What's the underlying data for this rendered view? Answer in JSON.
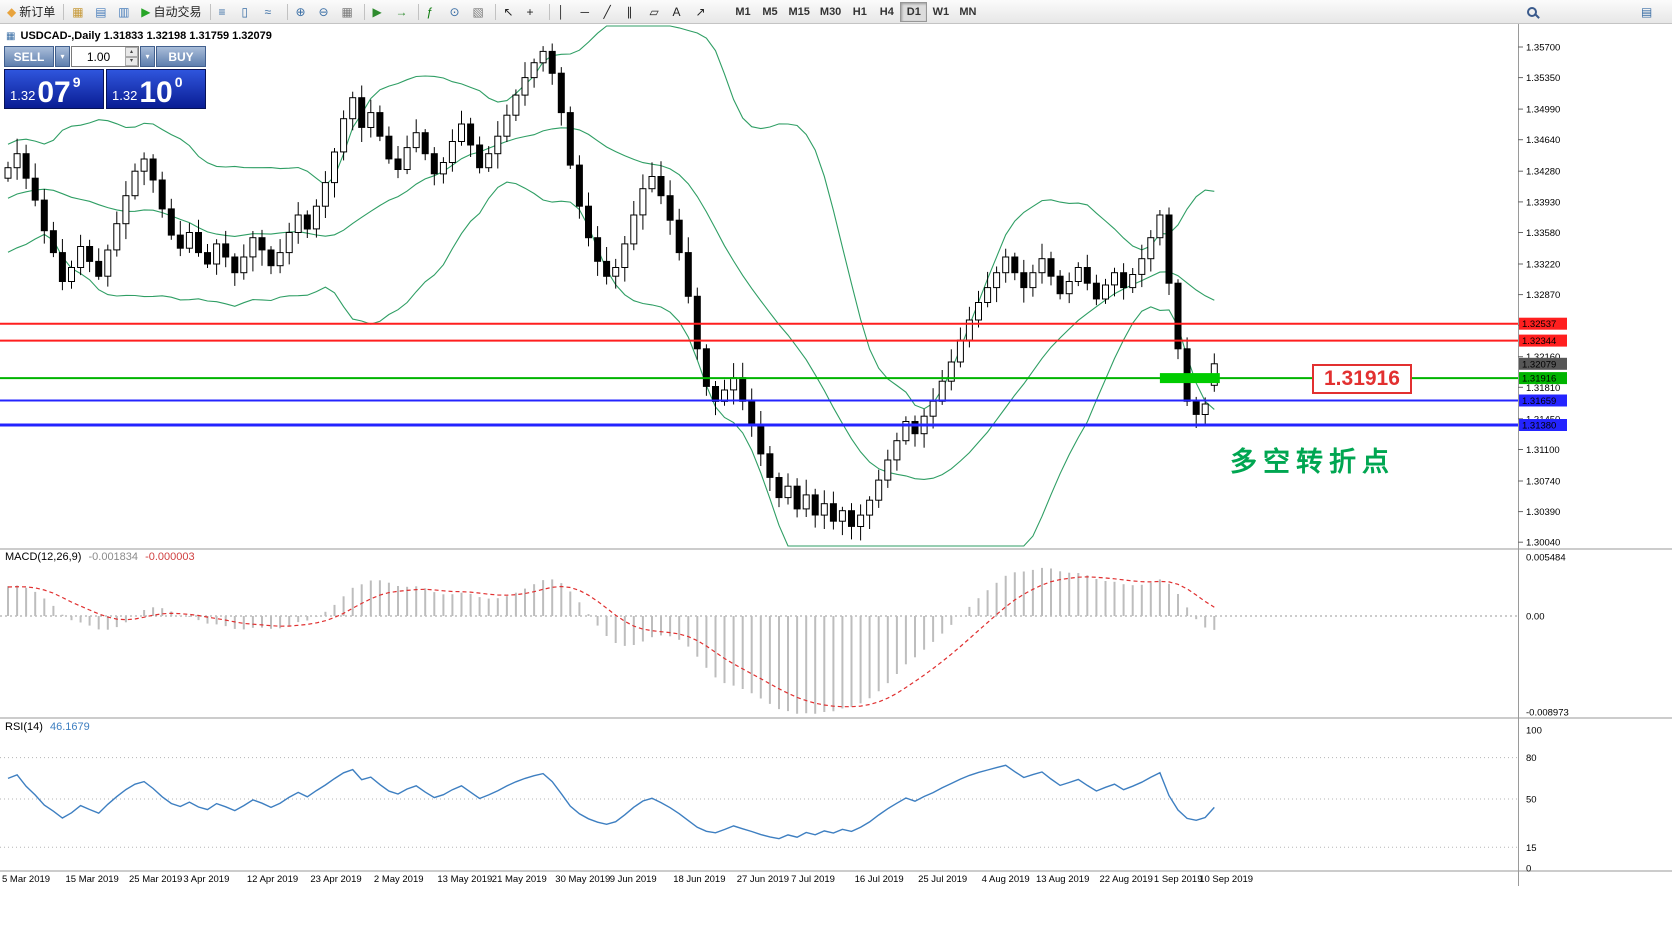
{
  "toolbar": {
    "groups": [
      {
        "items": [
          {
            "name": "new-order-button",
            "glyph": "◆",
            "color": "#e8a33d",
            "label": "新订单"
          }
        ]
      },
      {
        "items": [
          {
            "name": "chart-windows-icon",
            "glyph": "▦",
            "color": "#c79a3a"
          },
          {
            "name": "profiles-icon",
            "glyph": "▤",
            "color": "#4a7ebb"
          },
          {
            "name": "terminal-icon",
            "glyph": "▥",
            "color": "#4a7ebb"
          },
          {
            "name": "autotrading-button",
            "glyph": "▶",
            "color": "#27a527",
            "label": "自动交易"
          }
        ]
      },
      {
        "items": [
          {
            "name": "bar-chart-type-icon",
            "glyph": "≡",
            "color": "#3a6ea5"
          },
          {
            "name": "candlestick-chart-type-icon",
            "glyph": "▯",
            "color": "#3a6ea5"
          },
          {
            "name": "line-chart-type-icon",
            "glyph": "≈",
            "color": "#3a6ea5"
          }
        ]
      },
      {
        "items": [
          {
            "name": "zoom-in-icon",
            "glyph": "⊕",
            "color": "#3a6ea5"
          },
          {
            "name": "zoom-out-icon",
            "glyph": "⊖",
            "color": "#3a6ea5"
          },
          {
            "name": "tile-windows-icon",
            "glyph": "▦",
            "color": "#7a7a7a"
          }
        ]
      },
      {
        "items": [
          {
            "name": "auto-scroll-icon",
            "glyph": "▶",
            "color": "#2e8b2e"
          },
          {
            "name": "chart-shift-icon",
            "glyph": "→",
            "color": "#2e8b2e"
          }
        ]
      },
      {
        "items": [
          {
            "name": "indicators-icon",
            "glyph": "ƒ",
            "color": "#0a7a0a"
          },
          {
            "name": "periods-icon",
            "glyph": "⊙",
            "color": "#3a6ea5"
          },
          {
            "name": "templates-icon",
            "glyph": "▧",
            "color": "#7a7a7a"
          }
        ]
      },
      {
        "items": [
          {
            "name": "cursor-icon",
            "glyph": "↖",
            "color": "#222222"
          },
          {
            "name": "crosshair-icon",
            "glyph": "+",
            "color": "#222222"
          }
        ]
      },
      {
        "items": [
          {
            "name": "vertical-line-icon",
            "glyph": "│",
            "color": "#222222"
          },
          {
            "name": "horizontal-line-icon",
            "glyph": "─",
            "color": "#222222"
          },
          {
            "name": "trendline-icon",
            "glyph": "╱",
            "color": "#222222"
          },
          {
            "name": "equidistant-channel-icon",
            "glyph": "∥",
            "color": "#222222"
          },
          {
            "name": "shapes-icon",
            "glyph": "▱",
            "color": "#222222"
          },
          {
            "name": "text-label-icon",
            "glyph": "A",
            "color": "#222222"
          },
          {
            "name": "arrows-tool-icon",
            "glyph": "↗",
            "color": "#222222"
          }
        ]
      }
    ],
    "timeframes": [
      {
        "label": "M1",
        "active": false
      },
      {
        "label": "M5",
        "active": false
      },
      {
        "label": "M15",
        "active": false
      },
      {
        "label": "M30",
        "active": false
      },
      {
        "label": "H1",
        "active": false
      },
      {
        "label": "H4",
        "active": false
      },
      {
        "label": "D1",
        "active": true
      },
      {
        "label": "W1",
        "active": false
      },
      {
        "label": "MN",
        "active": false
      }
    ],
    "right_items": [
      {
        "name": "search-button",
        "css": "magnifier"
      },
      {
        "name": "popup-prices-button",
        "glyph": "▤",
        "color": "#3a6ea5"
      }
    ]
  },
  "chart": {
    "icon_glyph": "▦",
    "symbol_title": "USDCAD-,Daily",
    "ohlc_line": "1.31833 1.32198 1.31759 1.32079"
  },
  "trade_panel": {
    "sell_button_label": "SELL",
    "buy_button_label": "BUY",
    "volume_value": "1.00",
    "dropdown_glyph": "▾",
    "spinner_up_glyph": "▴",
    "spinner_down_glyph": "▾",
    "sell_price": {
      "prefix": "1.32",
      "big": "07",
      "sup": "9"
    },
    "buy_price": {
      "prefix": "1.32",
      "big": "10",
      "sup": "0"
    }
  },
  "annotations": {
    "pivot_note": "多空转折点",
    "pivot_price_label": "1.31916"
  },
  "chart_data": {
    "type": "candlestick",
    "symbol": "USDCAD",
    "timeframe": "Daily",
    "grid": false,
    "last_candle": {
      "open": 1.31833,
      "high": 1.32198,
      "low": 1.31759,
      "close": 1.32079
    },
    "current_price": {
      "label": "1.32079",
      "price": 1.32079
    },
    "price_axis_ticks": [
      "1.35700",
      "1.35350",
      "1.34990",
      "1.34640",
      "1.34280",
      "1.33930",
      "1.33580",
      "1.33220",
      "1.32870",
      "1.32520",
      "1.32160",
      "1.31810",
      "1.31450",
      "1.31100",
      "1.30740",
      "1.30390",
      "1.30040"
    ],
    "hlines": [
      {
        "label": "1.32537",
        "price": 1.32537,
        "color": "#ff1f1f",
        "width": 2
      },
      {
        "label": "1.32344",
        "price": 1.32344,
        "color": "#ff1f1f",
        "width": 2
      },
      {
        "label": "1.31916",
        "price": 1.31916,
        "color": "#00b400",
        "width": 2
      },
      {
        "label": "1.31659",
        "price": 1.31659,
        "color": "#2424ff",
        "width": 2
      },
      {
        "label": "1.31380",
        "price": 1.3138,
        "color": "#2424ff",
        "width": 3
      }
    ],
    "highlight_band": {
      "price": 1.31916,
      "from_index": 127,
      "to_index": 133.6,
      "color": "#00cc00",
      "thickness": 10
    },
    "bollinger": {
      "period": 20,
      "deviation": 2
    },
    "macd": {
      "label": "MACD(12,26,9)",
      "value_main": "-0.001834",
      "value_signal": "-0.000003",
      "params": [
        12,
        26,
        9
      ],
      "axis": [
        "0.005484",
        "0.00",
        "-0.008973"
      ]
    },
    "rsi": {
      "label": "RSI(14)",
      "value": "46.1679",
      "period": 14,
      "axis": [
        "100",
        "80",
        "50",
        "15",
        "0"
      ],
      "levels": [
        80,
        50,
        15
      ]
    },
    "dates": [
      {
        "label": "5 Mar 2019",
        "index": 0
      },
      {
        "label": "15 Mar 2019",
        "index": 7
      },
      {
        "label": "25 Mar 2019",
        "index": 14
      },
      {
        "label": "3 Apr 2019",
        "index": 20
      },
      {
        "label": "12 Apr 2019",
        "index": 27
      },
      {
        "label": "23 Apr 2019",
        "index": 34
      },
      {
        "label": "2 May 2019",
        "index": 41
      },
      {
        "label": "13 May 2019",
        "index": 48
      },
      {
        "label": "21 May 2019",
        "index": 54
      },
      {
        "label": "30 May 2019",
        "index": 61
      },
      {
        "label": "9 Jun 2019",
        "index": 67
      },
      {
        "label": "18 Jun 2019",
        "index": 74
      },
      {
        "label": "27 Jun 2019",
        "index": 81
      },
      {
        "label": "7 Jul 2019",
        "index": 87
      },
      {
        "label": "16 Jul 2019",
        "index": 94
      },
      {
        "label": "25 Jul 2019",
        "index": 101
      },
      {
        "label": "4 Aug 2019",
        "index": 108
      },
      {
        "label": "13 Aug 2019",
        "index": 114
      },
      {
        "label": "22 Aug 2019",
        "index": 121
      },
      {
        "label": "1 Sep 2019",
        "index": 127
      },
      {
        "label": "10 Sep 2019",
        "index": 132
      }
    ],
    "closes": [
      1.3432,
      1.3448,
      1.342,
      1.3395,
      1.336,
      1.3335,
      1.3302,
      1.3318,
      1.3342,
      1.3325,
      1.3308,
      1.3338,
      1.3368,
      1.34,
      1.3428,
      1.3442,
      1.3418,
      1.3385,
      1.3355,
      1.334,
      1.3358,
      1.3335,
      1.3322,
      1.3345,
      1.333,
      1.3312,
      1.333,
      1.3352,
      1.3338,
      1.332,
      1.3335,
      1.3358,
      1.3378,
      1.3362,
      1.3388,
      1.3415,
      1.345,
      1.3488,
      1.3512,
      1.3478,
      1.3495,
      1.3468,
      1.3442,
      1.343,
      1.3455,
      1.3472,
      1.3448,
      1.3425,
      1.3438,
      1.3462,
      1.3482,
      1.3458,
      1.3432,
      1.3448,
      1.3468,
      1.3492,
      1.3515,
      1.3535,
      1.3552,
      1.3565,
      1.354,
      1.3495,
      1.3435,
      1.3388,
      1.3352,
      1.3325,
      1.3308,
      1.3318,
      1.3345,
      1.3378,
      1.3408,
      1.3422,
      1.34,
      1.3372,
      1.3335,
      1.3285,
      1.3225,
      1.3182,
      1.3165,
      1.3178,
      1.3192,
      1.3165,
      1.3138,
      1.3105,
      1.3078,
      1.3055,
      1.3068,
      1.3042,
      1.3058,
      1.3035,
      1.3048,
      1.3028,
      1.304,
      1.3022,
      1.3035,
      1.3052,
      1.3075,
      1.3098,
      1.312,
      1.3142,
      1.3128,
      1.3148,
      1.3165,
      1.3188,
      1.321,
      1.3235,
      1.3258,
      1.3278,
      1.3295,
      1.3312,
      1.333,
      1.3312,
      1.3295,
      1.3312,
      1.3328,
      1.3308,
      1.3288,
      1.3302,
      1.3318,
      1.33,
      1.3282,
      1.3298,
      1.3312,
      1.3295,
      1.331,
      1.3328,
      1.3352,
      1.3378,
      1.33,
      1.3225,
      1.3165,
      1.315,
      1.3162,
      1.3208
    ],
    "warmup_closes": [
      1.33,
      1.3315,
      1.333,
      1.331,
      1.3295,
      1.331,
      1.333,
      1.335,
      1.337,
      1.3355,
      1.334,
      1.336,
      1.338,
      1.34,
      1.339,
      1.337,
      1.3385,
      1.3405,
      1.342,
      1.3435,
      1.3425,
      1.341,
      1.3425,
      1.344,
      1.343,
      1.342
    ],
    "colors": {
      "bollinger": "#2f9e64",
      "macd_histogram": "#bdbdbd",
      "macd_signal": "#e03030",
      "rsi_line": "#3e7fc1",
      "bull_candle": "#ffffff",
      "bear_candle": "#000000",
      "current_price_tag": "#565656"
    }
  }
}
